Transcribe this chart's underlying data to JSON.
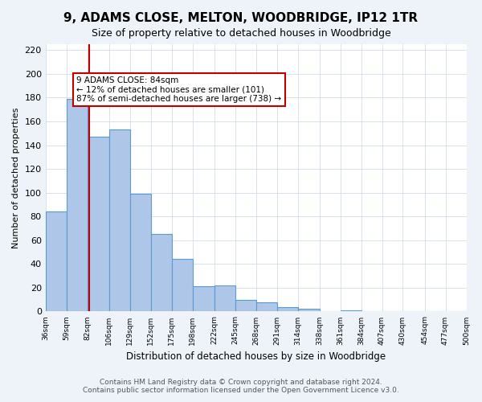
{
  "title": "9, ADAMS CLOSE, MELTON, WOODBRIDGE, IP12 1TR",
  "subtitle": "Size of property relative to detached houses in Woodbridge",
  "xlabel": "Distribution of detached houses by size in Woodbridge",
  "ylabel": "Number of detached properties",
  "footer_line1": "Contains HM Land Registry data © Crown copyright and database right 2024.",
  "footer_line2": "Contains public sector information licensed under the Open Government Licence v3.0.",
  "bar_edges": [
    36,
    59,
    82,
    106,
    129,
    152,
    175,
    198,
    222,
    245,
    268,
    291,
    314,
    338,
    361,
    384,
    407,
    430,
    454,
    477,
    500
  ],
  "bar_heights": [
    84,
    179,
    147,
    153,
    99,
    65,
    44,
    21,
    22,
    10,
    8,
    4,
    2,
    0,
    1,
    0,
    0,
    0,
    0,
    0
  ],
  "bar_color": "#aec6e8",
  "bar_edge_color": "#5b9bd5",
  "property_size": 84,
  "property_label": "9 ADAMS CLOSE: 84sqm",
  "annotation_line1": "← 12% of detached houses are smaller (101)",
  "annotation_line2": "87% of semi-detached houses are larger (738) →",
  "vline_color": "#c00000",
  "vline_x": 84,
  "annotation_box_color": "#c00000",
  "ylim": [
    0,
    225
  ],
  "yticks": [
    0,
    20,
    40,
    60,
    80,
    100,
    120,
    140,
    160,
    180,
    200,
    220
  ],
  "bg_color": "#eef3fa",
  "plot_bg_color": "#ffffff",
  "grid_color": "#c8d4e8"
}
